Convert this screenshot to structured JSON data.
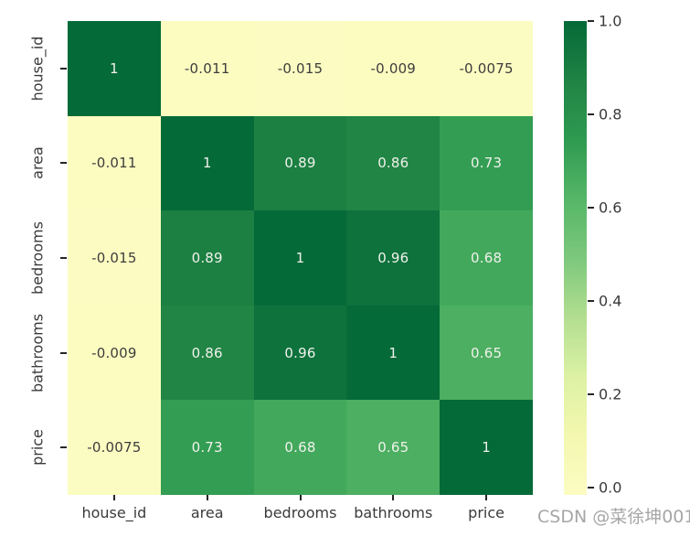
{
  "chart_data": {
    "type": "heatmap",
    "title": "",
    "categories": [
      "house_id",
      "area",
      "bedrooms",
      "bathrooms",
      "price"
    ],
    "x_tick_labels": [
      "house_id",
      "area",
      "bedrooms",
      "bathrooms",
      "price"
    ],
    "y_tick_labels": [
      "house_id",
      "area",
      "bedrooms",
      "bathrooms",
      "price"
    ],
    "matrix": [
      [
        1,
        -0.011,
        -0.015,
        -0.009,
        -0.0075
      ],
      [
        -0.011,
        1,
        0.89,
        0.86,
        0.73
      ],
      [
        -0.015,
        0.89,
        1,
        0.96,
        0.68
      ],
      [
        -0.009,
        0.86,
        0.96,
        1,
        0.65
      ],
      [
        -0.0075,
        0.73,
        0.68,
        0.65,
        1
      ]
    ],
    "annotations": [
      [
        "1",
        "-0.011",
        "-0.015",
        "-0.009",
        "-0.0075"
      ],
      [
        "-0.011",
        "1",
        "0.89",
        "0.86",
        "0.73"
      ],
      [
        "-0.015",
        "0.89",
        "1",
        "0.96",
        "0.68"
      ],
      [
        "-0.009",
        "0.86",
        "0.96",
        "1",
        "0.65"
      ],
      [
        "-0.0075",
        "0.73",
        "0.68",
        "0.65",
        "1"
      ]
    ],
    "vmin": -0.015,
    "vmax": 1.0,
    "colormap": {
      "name": "YlGn",
      "stops": [
        [
          0.0,
          "#fcfcc2"
        ],
        [
          0.125,
          "#f3f8af"
        ],
        [
          0.25,
          "#dcf1a4"
        ],
        [
          0.375,
          "#b2de90"
        ],
        [
          0.5,
          "#7cc87c"
        ],
        [
          0.625,
          "#55b667"
        ],
        [
          0.75,
          "#2e9a50"
        ],
        [
          0.875,
          "#1f8344"
        ],
        [
          1.0,
          "#046a38"
        ]
      ]
    },
    "colorbar": {
      "ticks": [
        1.0,
        0.8,
        0.6,
        0.4,
        0.2,
        0.0
      ],
      "tick_labels": [
        "1.0",
        "0.8",
        "0.6",
        "0.4",
        "0.2",
        "0.0"
      ],
      "position": "right"
    },
    "annotation_text_colors": {
      "dark": "#3d3d3d",
      "light": "#f1f1ec"
    },
    "axis_text_color": "#3a3a3a",
    "legend_position": "none",
    "grid": false
  },
  "watermark": {
    "text": "CSDN @菜徐坤001",
    "color": "#a6a6a6"
  }
}
